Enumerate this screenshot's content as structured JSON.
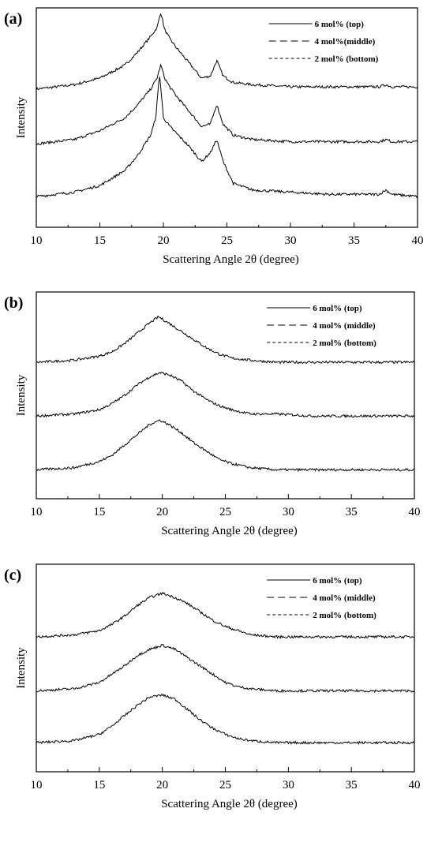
{
  "chart_data": [
    {
      "panel_label": "(a)",
      "type": "line",
      "xlabel": "Scattering Angle 2θ (degree)",
      "ylabel": "Intensity",
      "xlim": [
        10,
        40
      ],
      "xticks": [
        "10",
        "15",
        "20",
        "25",
        "30",
        "35",
        "40"
      ],
      "legend": [
        "6 mol% (top)",
        "4 mol%(middle)",
        "2 mol% (bottom)"
      ],
      "legend_position": "top-right",
      "series": [
        {
          "name": "6 mol% (top)",
          "line": "solid",
          "x": [
            10,
            13,
            15,
            17,
            18,
            19,
            19.5,
            19.8,
            20.1,
            20.5,
            21,
            22,
            23,
            23.7,
            24.2,
            24.7,
            25.5,
            27,
            30,
            33,
            37,
            37.5,
            38,
            40
          ],
          "y": [
            0.63,
            0.65,
            0.68,
            0.74,
            0.8,
            0.87,
            0.91,
            0.98,
            0.9,
            0.86,
            0.82,
            0.75,
            0.68,
            0.69,
            0.76,
            0.69,
            0.66,
            0.65,
            0.64,
            0.64,
            0.64,
            0.65,
            0.64,
            0.64
          ]
        },
        {
          "name": "4 mol%(middle)",
          "line": "dashed",
          "x": [
            10,
            13,
            15,
            17,
            18,
            19,
            19.5,
            19.8,
            20.1,
            20.5,
            21,
            22,
            23,
            23.7,
            24.2,
            24.7,
            25.5,
            27,
            30,
            33,
            37,
            37.5,
            38,
            40
          ],
          "y": [
            0.38,
            0.4,
            0.44,
            0.5,
            0.56,
            0.63,
            0.68,
            0.74,
            0.68,
            0.64,
            0.6,
            0.53,
            0.46,
            0.47,
            0.56,
            0.47,
            0.42,
            0.4,
            0.39,
            0.39,
            0.39,
            0.4,
            0.39,
            0.39
          ]
        },
        {
          "name": "2 mol% (bottom)",
          "line": "dotted",
          "x": [
            10,
            13,
            15,
            17,
            18,
            19,
            19.4,
            19.7,
            20.0,
            20.5,
            21,
            22,
            23,
            23.7,
            24.2,
            24.7,
            25.5,
            27,
            30,
            33,
            37,
            37.5,
            38,
            40
          ],
          "y": [
            0.14,
            0.16,
            0.19,
            0.26,
            0.33,
            0.42,
            0.5,
            0.7,
            0.5,
            0.46,
            0.43,
            0.37,
            0.3,
            0.34,
            0.4,
            0.3,
            0.2,
            0.17,
            0.16,
            0.15,
            0.15,
            0.17,
            0.15,
            0.14
          ]
        }
      ]
    },
    {
      "panel_label": "(b)",
      "type": "line",
      "xlabel": "Scattering Angle 2θ (degree)",
      "ylabel": "Intensity",
      "xlim": [
        10,
        40
      ],
      "xticks": [
        "10",
        "15",
        "20",
        "25",
        "30",
        "35",
        "40"
      ],
      "legend": [
        "6 mol% (top)",
        "4 mol% (middle)",
        "2 mol% (bottom)"
      ],
      "legend_position": "top-right",
      "series": [
        {
          "name": "6 mol% (top)",
          "line": "solid",
          "x": [
            10,
            13,
            15,
            16,
            17,
            18,
            19,
            19.7,
            20.5,
            21.5,
            22.5,
            23.5,
            24.5,
            25.5,
            27,
            29,
            32,
            36,
            40
          ],
          "y": [
            0.66,
            0.67,
            0.69,
            0.71,
            0.75,
            0.8,
            0.85,
            0.88,
            0.85,
            0.81,
            0.77,
            0.73,
            0.7,
            0.68,
            0.67,
            0.66,
            0.66,
            0.66,
            0.66
          ]
        },
        {
          "name": "4 mol% (middle)",
          "line": "dashed",
          "x": [
            10,
            13,
            15,
            16,
            17,
            18,
            19,
            19.8,
            20.5,
            21.5,
            22.5,
            23.5,
            24.5,
            25.5,
            27,
            29,
            32,
            36,
            40
          ],
          "y": [
            0.4,
            0.41,
            0.43,
            0.46,
            0.5,
            0.55,
            0.59,
            0.61,
            0.6,
            0.57,
            0.52,
            0.48,
            0.45,
            0.43,
            0.41,
            0.41,
            0.4,
            0.4,
            0.4
          ]
        },
        {
          "name": "2 mol% (bottom)",
          "line": "dotted",
          "x": [
            10,
            13,
            15,
            16,
            17,
            18,
            19,
            19.8,
            20.5,
            21.5,
            22.5,
            23.5,
            24.5,
            25.5,
            27,
            29,
            32,
            36,
            40
          ],
          "y": [
            0.14,
            0.15,
            0.18,
            0.21,
            0.26,
            0.31,
            0.36,
            0.38,
            0.36,
            0.32,
            0.27,
            0.23,
            0.19,
            0.17,
            0.15,
            0.14,
            0.14,
            0.14,
            0.14
          ]
        }
      ]
    },
    {
      "panel_label": "(c)",
      "type": "line",
      "xlabel": "Scattering Angle 2θ (degree)",
      "ylabel": "Intensity",
      "xlim": [
        10,
        40
      ],
      "xticks": [
        "10",
        "15",
        "20",
        "25",
        "30",
        "35",
        "40"
      ],
      "legend": [
        "6 mol% (top)",
        "4 mol% (middle)",
        "2 mol% (bottom)"
      ],
      "legend_position": "top-right",
      "series": [
        {
          "name": "6 mol% (top)",
          "line": "solid",
          "x": [
            10,
            13,
            15,
            16,
            17,
            18,
            19,
            20,
            21,
            22,
            23,
            24,
            25,
            26,
            27,
            29,
            32,
            36,
            40
          ],
          "y": [
            0.65,
            0.66,
            0.68,
            0.71,
            0.75,
            0.8,
            0.84,
            0.86,
            0.84,
            0.81,
            0.77,
            0.73,
            0.7,
            0.68,
            0.66,
            0.65,
            0.65,
            0.65,
            0.65
          ]
        },
        {
          "name": "4 mol% (middle)",
          "line": "dashed",
          "x": [
            10,
            13,
            15,
            16,
            17,
            18,
            19,
            20,
            21,
            22,
            23,
            24,
            25,
            26,
            27,
            29,
            32,
            36,
            40
          ],
          "y": [
            0.39,
            0.4,
            0.43,
            0.47,
            0.51,
            0.56,
            0.59,
            0.61,
            0.59,
            0.55,
            0.51,
            0.47,
            0.43,
            0.41,
            0.4,
            0.39,
            0.39,
            0.39,
            0.39
          ]
        },
        {
          "name": "2 mol% (bottom)",
          "line": "dotted",
          "x": [
            10,
            13,
            15,
            16,
            17,
            18,
            19,
            20,
            21,
            22,
            23,
            24,
            25,
            26,
            27,
            29,
            32,
            36,
            40
          ],
          "y": [
            0.14,
            0.15,
            0.18,
            0.22,
            0.27,
            0.32,
            0.36,
            0.37,
            0.35,
            0.3,
            0.25,
            0.21,
            0.18,
            0.16,
            0.15,
            0.14,
            0.14,
            0.14,
            0.14
          ]
        }
      ]
    }
  ]
}
